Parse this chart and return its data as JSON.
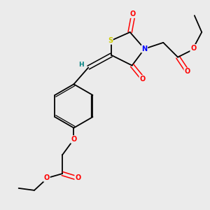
{
  "bg_color": "#ebebeb",
  "atom_colors": {
    "S": "#cccc00",
    "N": "#0000ff",
    "O": "#ff0000",
    "C": "#000000",
    "H": "#008080"
  },
  "bond_color": "#000000",
  "figsize": [
    3.0,
    3.0
  ],
  "dpi": 100
}
